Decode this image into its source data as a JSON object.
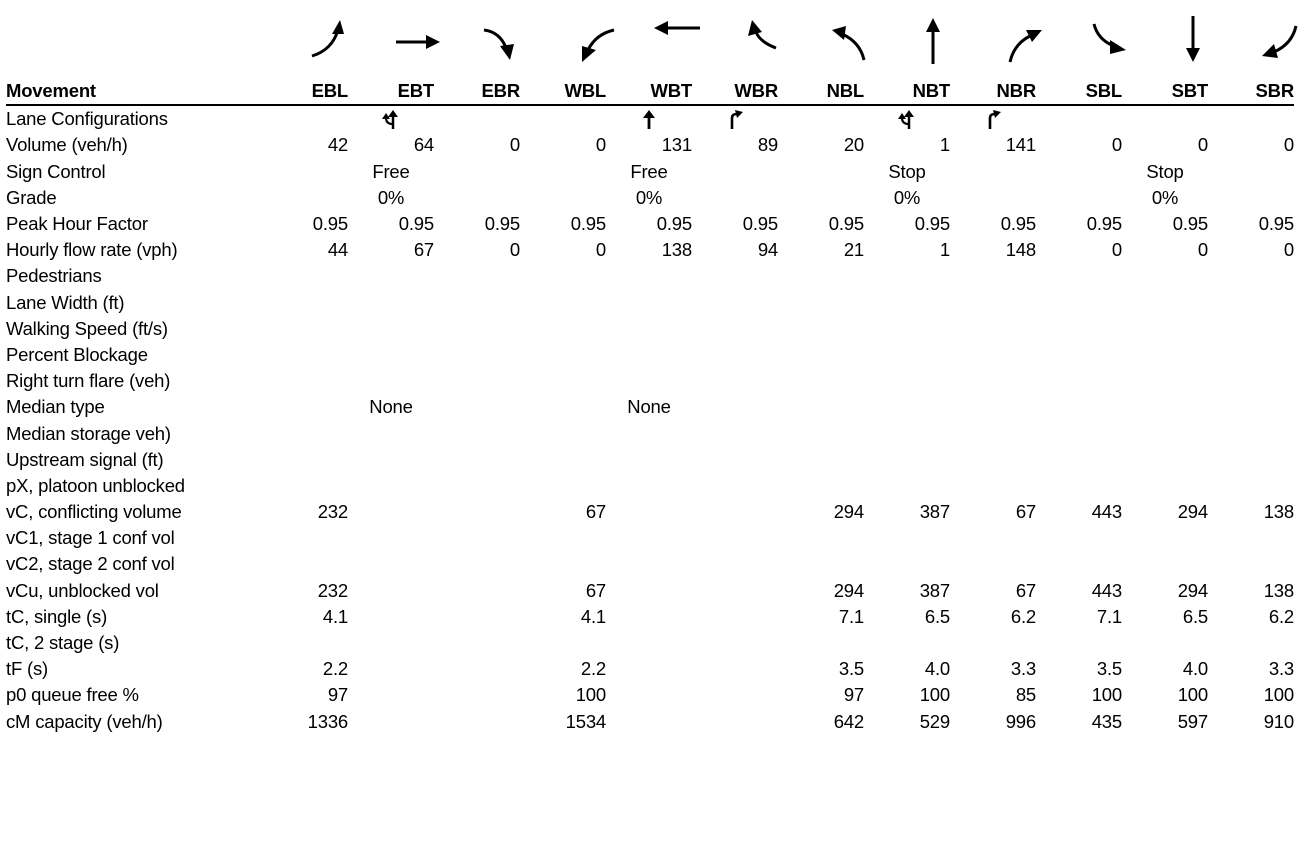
{
  "header": {
    "label": "Movement",
    "movements": [
      "EBL",
      "EBT",
      "EBR",
      "WBL",
      "WBT",
      "WBR",
      "NBL",
      "NBT",
      "NBR",
      "SBL",
      "SBT",
      "SBR"
    ]
  },
  "arrow_icons": [
    "eastbound-left-arrow-icon",
    "eastbound-through-arrow-icon",
    "eastbound-right-arrow-icon",
    "westbound-left-arrow-icon",
    "westbound-through-arrow-icon",
    "westbound-right-arrow-icon",
    "northbound-left-arrow-icon",
    "northbound-through-arrow-icon",
    "northbound-right-arrow-icon",
    "southbound-left-arrow-icon",
    "southbound-through-arrow-icon",
    "southbound-right-arrow-icon"
  ],
  "rows": [
    {
      "label": "Lane Configurations",
      "icons": [
        "",
        "through-left-lane-icon",
        "",
        "",
        "through-lane-icon",
        "right-lane-icon",
        "",
        "through-left-lane-icon",
        "right-lane-icon",
        "",
        "",
        ""
      ]
    },
    {
      "label": "Volume (veh/h)",
      "values": [
        "42",
        "64",
        "0",
        "0",
        "131",
        "89",
        "20",
        "1",
        "141",
        "0",
        "0",
        "0"
      ]
    },
    {
      "label": "Sign Control",
      "values": [
        "",
        "Free",
        "",
        "",
        "Free",
        "",
        "",
        "Stop",
        "",
        "",
        "Stop",
        ""
      ],
      "center": true
    },
    {
      "label": "Grade",
      "values": [
        "",
        "0%",
        "",
        "",
        "0%",
        "",
        "",
        "0%",
        "",
        "",
        "0%",
        ""
      ],
      "center": true
    },
    {
      "label": "Peak Hour Factor",
      "values": [
        "0.95",
        "0.95",
        "0.95",
        "0.95",
        "0.95",
        "0.95",
        "0.95",
        "0.95",
        "0.95",
        "0.95",
        "0.95",
        "0.95"
      ]
    },
    {
      "label": "Hourly flow rate (vph)",
      "values": [
        "44",
        "67",
        "0",
        "0",
        "138",
        "94",
        "21",
        "1",
        "148",
        "0",
        "0",
        "0"
      ]
    },
    {
      "label": "Pedestrians",
      "values": [
        "",
        "",
        "",
        "",
        "",
        "",
        "",
        "",
        "",
        "",
        "",
        ""
      ]
    },
    {
      "label": "Lane Width (ft)",
      "values": [
        "",
        "",
        "",
        "",
        "",
        "",
        "",
        "",
        "",
        "",
        "",
        ""
      ]
    },
    {
      "label": "Walking Speed (ft/s)",
      "values": [
        "",
        "",
        "",
        "",
        "",
        "",
        "",
        "",
        "",
        "",
        "",
        ""
      ]
    },
    {
      "label": "Percent Blockage",
      "values": [
        "",
        "",
        "",
        "",
        "",
        "",
        "",
        "",
        "",
        "",
        "",
        ""
      ]
    },
    {
      "label": "Right turn flare (veh)",
      "values": [
        "",
        "",
        "",
        "",
        "",
        "",
        "",
        "",
        "",
        "",
        "",
        ""
      ]
    },
    {
      "label": "Median type",
      "values": [
        "",
        "None",
        "",
        "",
        "None",
        "",
        "",
        "",
        "",
        "",
        "",
        ""
      ],
      "center": true
    },
    {
      "label": "Median storage veh)",
      "values": [
        "",
        "",
        "",
        "",
        "",
        "",
        "",
        "",
        "",
        "",
        "",
        ""
      ]
    },
    {
      "label": "Upstream signal (ft)",
      "values": [
        "",
        "",
        "",
        "",
        "",
        "",
        "",
        "",
        "",
        "",
        "",
        ""
      ]
    },
    {
      "label": "pX, platoon unblocked",
      "values": [
        "",
        "",
        "",
        "",
        "",
        "",
        "",
        "",
        "",
        "",
        "",
        ""
      ]
    },
    {
      "label": "vC, conflicting volume",
      "values": [
        "232",
        "",
        "",
        "67",
        "",
        "",
        "294",
        "387",
        "67",
        "443",
        "294",
        "138"
      ]
    },
    {
      "label": "vC1, stage 1 conf vol",
      "values": [
        "",
        "",
        "",
        "",
        "",
        "",
        "",
        "",
        "",
        "",
        "",
        ""
      ]
    },
    {
      "label": "vC2, stage 2 conf vol",
      "values": [
        "",
        "",
        "",
        "",
        "",
        "",
        "",
        "",
        "",
        "",
        "",
        ""
      ]
    },
    {
      "label": "vCu, unblocked vol",
      "values": [
        "232",
        "",
        "",
        "67",
        "",
        "",
        "294",
        "387",
        "67",
        "443",
        "294",
        "138"
      ]
    },
    {
      "label": "tC, single (s)",
      "values": [
        "4.1",
        "",
        "",
        "4.1",
        "",
        "",
        "7.1",
        "6.5",
        "6.2",
        "7.1",
        "6.5",
        "6.2"
      ]
    },
    {
      "label": "tC, 2 stage (s)",
      "values": [
        "",
        "",
        "",
        "",
        "",
        "",
        "",
        "",
        "",
        "",
        "",
        ""
      ]
    },
    {
      "label": "tF (s)",
      "values": [
        "2.2",
        "",
        "",
        "2.2",
        "",
        "",
        "3.5",
        "4.0",
        "3.3",
        "3.5",
        "4.0",
        "3.3"
      ]
    },
    {
      "label": "p0 queue free %",
      "values": [
        "97",
        "",
        "",
        "100",
        "",
        "",
        "97",
        "100",
        "85",
        "100",
        "100",
        "100"
      ]
    },
    {
      "label": "cM capacity (veh/h)",
      "values": [
        "1336",
        "",
        "",
        "1534",
        "",
        "",
        "642",
        "529",
        "996",
        "435",
        "597",
        "910"
      ]
    }
  ]
}
